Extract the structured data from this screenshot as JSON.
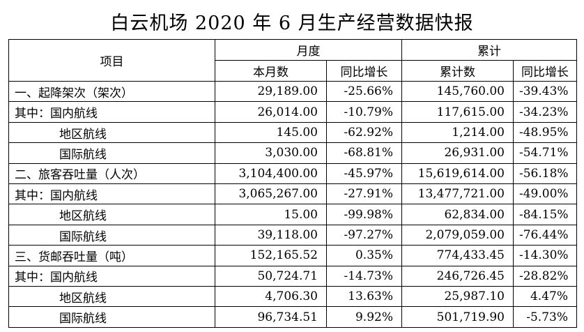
{
  "title": "白云机场 2020 年 6 月生产经营数据快报",
  "header": {
    "item": "项目",
    "monthly": "月度",
    "cumulative": "累计",
    "this_month": "本月数",
    "yoy1": "同比增长",
    "cum_count": "累计数",
    "yoy2": "同比增长"
  },
  "rows": [
    {
      "label": "一、起降架次（架次）",
      "month": "29,189.00",
      "month_yoy": "-25.66%",
      "cum": "145,760.00",
      "cum_yoy": "-39.43%"
    },
    {
      "label": "其中：国内航线",
      "month": "26,014.00",
      "month_yoy": "-10.79%",
      "cum": "117,615.00",
      "cum_yoy": "-34.23%"
    },
    {
      "label": "地区航线",
      "month": "145.00",
      "month_yoy": "-62.92%",
      "cum": "1,214.00",
      "cum_yoy": "-48.95%"
    },
    {
      "label": "国际航线",
      "month": "3,030.00",
      "month_yoy": "-68.81%",
      "cum": "26,931.00",
      "cum_yoy": "-54.71%"
    },
    {
      "label": "二、旅客吞吐量（人次）",
      "month": "3,104,400.00",
      "month_yoy": "-45.97%",
      "cum": "15,619,614.00",
      "cum_yoy": "-56.18%"
    },
    {
      "label": "其中：国内航线",
      "month": "3,065,267.00",
      "month_yoy": "-27.91%",
      "cum": "13,477,721.00",
      "cum_yoy": "-49.00%"
    },
    {
      "label": "地区航线",
      "month": "15.00",
      "month_yoy": "-99.98%",
      "cum": "62,834.00",
      "cum_yoy": "-84.15%"
    },
    {
      "label": "国际航线",
      "month": "39,118.00",
      "month_yoy": "-97.27%",
      "cum": "2,079,059.00",
      "cum_yoy": "-76.44%"
    },
    {
      "label": "三、货邮吞吐量（吨）",
      "month": "152,165.52",
      "month_yoy": "0.35%",
      "cum": "774,433.45",
      "cum_yoy": "-14.30%"
    },
    {
      "label": "其中：国内航线",
      "month": "50,724.71",
      "month_yoy": "-14.73%",
      "cum": "246,726.45",
      "cum_yoy": "-28.82%"
    },
    {
      "label": "地区航线",
      "month": "4,706.30",
      "month_yoy": "13.63%",
      "cum": "25,987.10",
      "cum_yoy": "4.47%"
    },
    {
      "label": "国际航线",
      "month": "96,734.51",
      "month_yoy": "9.92%",
      "cum": "501,719.90",
      "cum_yoy": "-5.73%"
    }
  ]
}
